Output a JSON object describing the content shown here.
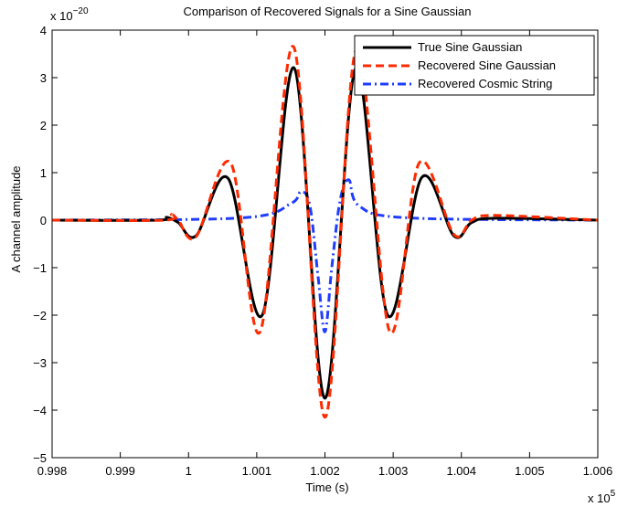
{
  "chart_data": {
    "type": "line",
    "title": "Comparison of Recovered Signals for a Sine Gaussian",
    "xlabel": "Time (s)",
    "ylabel": "A channel amplitude",
    "x_exponent": "x 10",
    "x_exponent_power": "5",
    "y_exponent": "x 10",
    "y_exponent_power": "−20",
    "xlim": [
      0.998,
      1.006
    ],
    "ylim": [
      -5,
      4
    ],
    "x_ticks": [
      0.998,
      0.999,
      1.0,
      1.001,
      1.002,
      1.003,
      1.004,
      1.005,
      1.006
    ],
    "x_tick_labels": [
      "0.998",
      "0.999",
      "1",
      "1.001",
      "1.002",
      "1.003",
      "1.004",
      "1.005",
      "1.006"
    ],
    "y_ticks": [
      -5,
      -4,
      -3,
      -2,
      -1,
      0,
      1,
      2,
      3,
      4
    ],
    "y_tick_labels": [
      "−5",
      "−4",
      "−3",
      "−2",
      "−1",
      "0",
      "1",
      "2",
      "3",
      "4"
    ],
    "grid": false,
    "legend_position": "top-right",
    "series": [
      {
        "name": "True Sine Gaussian",
        "color": "#000000",
        "style": "solid",
        "x": [
          0.998,
          0.99955,
          0.99968,
          0.99985,
          1.00011,
          1.00058,
          1.00108,
          1.00155,
          1.002,
          1.00245,
          1.00292,
          1.00342,
          1.00389,
          1.00415,
          1.0045,
          1.006
        ],
        "y": [
          0,
          0,
          0.06,
          -0.05,
          -0.33,
          0.88,
          -2.0,
          3.2,
          -3.75,
          3.2,
          -2.0,
          0.9,
          -0.33,
          -0.05,
          0.04,
          0
        ]
      },
      {
        "name": "Recovered Sine Gaussian",
        "color": "#ff2a00",
        "style": "dashed",
        "x": [
          0.998,
          0.99965,
          0.99975,
          0.99985,
          1.00011,
          1.00062,
          1.00105,
          1.00154,
          1.002,
          1.00246,
          1.00295,
          1.00338,
          1.00389,
          1.00415,
          1.00448,
          1.006
        ],
        "y": [
          0,
          0,
          0.12,
          0.0,
          -0.35,
          1.2,
          -2.35,
          3.65,
          -4.15,
          3.6,
          -2.35,
          1.2,
          -0.3,
          0.0,
          0.1,
          0
        ]
      },
      {
        "name": "Recovered Cosmic String",
        "color": "#1f3dff",
        "style": "dashdot",
        "x": [
          0.998,
          1.0008,
          1.0015,
          1.00165,
          1.00178,
          1.0019,
          1.002,
          1.0021,
          1.00222,
          1.00235,
          1.0025,
          1.0032,
          1.006
        ],
        "y": [
          0,
          0.05,
          0.35,
          0.6,
          0.3,
          -1.2,
          -2.35,
          -1.0,
          0.4,
          0.85,
          0.3,
          0.05,
          0
        ]
      }
    ]
  }
}
